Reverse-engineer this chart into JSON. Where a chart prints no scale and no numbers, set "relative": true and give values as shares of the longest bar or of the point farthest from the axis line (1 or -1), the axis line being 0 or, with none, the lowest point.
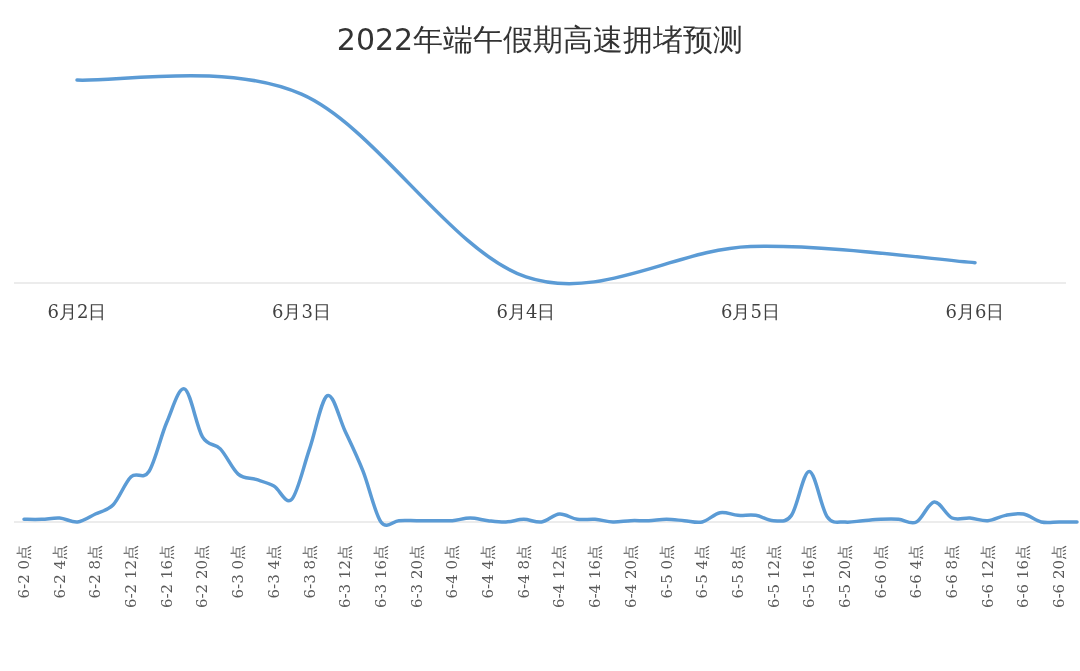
{
  "chart_data": [
    {
      "type": "line",
      "title": "2022年端午假期高速拥堵预测",
      "relative": true,
      "color": "#5b9bd5",
      "categories": [
        "6月2日",
        "6月3日",
        "6月4日",
        "6月5日",
        "6月6日"
      ],
      "values": [
        1,
        0.93,
        0.03,
        0.18,
        0.1
      ]
    },
    {
      "type": "line",
      "relative": true,
      "color": "#5b9bd5",
      "categories": [
        "6-2 0点",
        null,
        "6-2 4点",
        null,
        "6-2 8点",
        null,
        "6-2 12点",
        null,
        "6-2 16点",
        null,
        "6-2 20点",
        null,
        "6-3 0点",
        null,
        "6-3 4点",
        null,
        "6-3 8点",
        null,
        "6-3 12点",
        null,
        "6-3 16点",
        null,
        "6-3 20点",
        null,
        "6-4 0点",
        null,
        "6-4 4点",
        null,
        "6-4 8点",
        null,
        "6-4 12点",
        null,
        "6-4 16点",
        null,
        "6-4 20点",
        null,
        "6-5 0点",
        null,
        "6-5 4点",
        null,
        "6-5 8点",
        null,
        "6-5 12点",
        null,
        "6-5 16点",
        null,
        "6-5 20点",
        null,
        "6-6 0点",
        null,
        "6-6 4点",
        null,
        "6-6 8点",
        null,
        "6-6 12点",
        null,
        "6-6 16点",
        null,
        "6-6 20点",
        null
      ],
      "values": [
        0.02,
        0.02,
        0.03,
        0,
        0.06,
        0.13,
        0.34,
        0.38,
        0.75,
        1,
        0.64,
        0.55,
        0.36,
        0.32,
        0.27,
        0.17,
        0.55,
        0.95,
        0.68,
        0.38,
        0,
        0.01,
        0.01,
        0.01,
        0.01,
        0.03,
        0.01,
        0,
        0.02,
        0,
        0.06,
        0.02,
        0.02,
        0,
        0.01,
        0.01,
        0.02,
        0.01,
        0,
        0.07,
        0.05,
        0.05,
        0.01,
        0.05,
        0.38,
        0.04,
        0,
        0.01,
        0.02,
        0.02,
        0,
        0.15,
        0.03,
        0.03,
        0.01,
        0.05,
        0.06,
        0,
        0,
        0
      ]
    }
  ]
}
